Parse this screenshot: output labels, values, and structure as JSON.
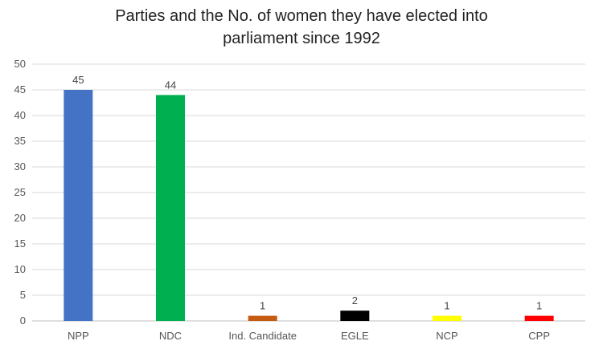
{
  "chart_data": {
    "type": "bar",
    "title_lines": [
      "Parties and the No. of women they have elected into",
      "parliament since 1992"
    ],
    "categories": [
      "NPP",
      "NDC",
      "Ind. Candidate",
      "EGLE",
      "NCP",
      "CPP"
    ],
    "values": [
      45,
      44,
      1,
      2,
      1,
      1
    ],
    "colors": [
      "#4472c4",
      "#00b050",
      "#c55a11",
      "#000000",
      "#ffff00",
      "#ff0000"
    ],
    "xlabel": "",
    "ylabel": "",
    "ylim": [
      0,
      50
    ],
    "yticks": [
      0,
      5,
      10,
      15,
      20,
      25,
      30,
      35,
      40,
      45,
      50
    ],
    "grid": true,
    "legend": "none",
    "data_labels": true
  }
}
